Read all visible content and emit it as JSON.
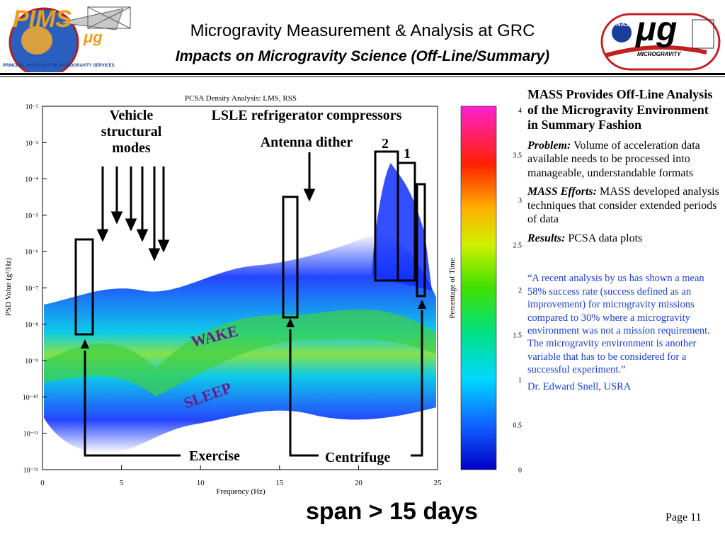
{
  "header": {
    "title": "Microgravity Measurement & Analysis at GRC",
    "subtitle": "Impacts on Microgravity Science (Off-Line/Summary)",
    "left_logo_text": "PIMS",
    "left_logo_sub": "μg",
    "left_logo_ring": "PRINCIPAL INVESTIGATOR MICROGRAVITY SERVICES",
    "right_logo_nasa": "NASA",
    "right_logo_mu": "μg",
    "right_logo_band": "MICROGRAVITY"
  },
  "colors": {
    "quote_blue": "#1a3fd8",
    "background": "#ffffff"
  },
  "chart_data": {
    "type": "heatmap",
    "title": "PCSA Density Analysis: LMS, RSS",
    "xlabel": "Frequency (Hz)",
    "ylabel": "PSD Value (g²/Hz)",
    "x_ticks": [
      "0",
      "5",
      "10",
      "15",
      "20",
      "25"
    ],
    "xlim": [
      0,
      25
    ],
    "y_ticks": [
      "10⁻²",
      "10⁻³",
      "10⁻⁴",
      "10⁻⁵",
      "10⁻⁶",
      "10⁻⁷",
      "10⁻⁸",
      "10⁻⁹",
      "10⁻¹⁰",
      "10⁻¹¹",
      "10⁻¹²"
    ],
    "ylim_log10": [
      -12,
      -2
    ],
    "colorbar": {
      "label": "Percentage of Time",
      "ticks": [
        "4",
        "3.5",
        "3",
        "2.5",
        "2",
        "1.5",
        "1",
        "0.5",
        "0"
      ],
      "range": [
        0,
        4
      ]
    },
    "annotations": {
      "vehicle": "Vehicle structural modes",
      "lsle": "LSLE refrigerator compressors",
      "antenna": "Antenna dither",
      "two": "2",
      "one": "1",
      "wake": "WAKE",
      "sleep": "SLEEP",
      "exercise": "Exercise",
      "centrifuge": "Centrifuge"
    }
  },
  "right_panel": {
    "heading": "MASS Provides Off-Line Analysis of the Microgravity Environment in Summary Fashion",
    "problem_label": "Problem:",
    "problem_text": "Volume of acceleration data available needs to be processed into manageable, understandable formats",
    "efforts_label": "MASS Efforts:",
    "efforts_text": "MASS developed analysis techniques that consider extended periods of data",
    "results_label": "Results:",
    "results_text": "PCSA data plots",
    "quote": "“A recent analysis by us has shown a mean 58% success rate (success defined as an improvement) for microgravity missions compared to 30% where a microgravity environment was not a mission requirement.  The microgravity environment is another variable that has to be considered for a successful experiment.”",
    "quote_author": "Dr. Edward Snell, USRA"
  },
  "footer": {
    "span_text": "span > 15 days",
    "page": "Page 11"
  }
}
